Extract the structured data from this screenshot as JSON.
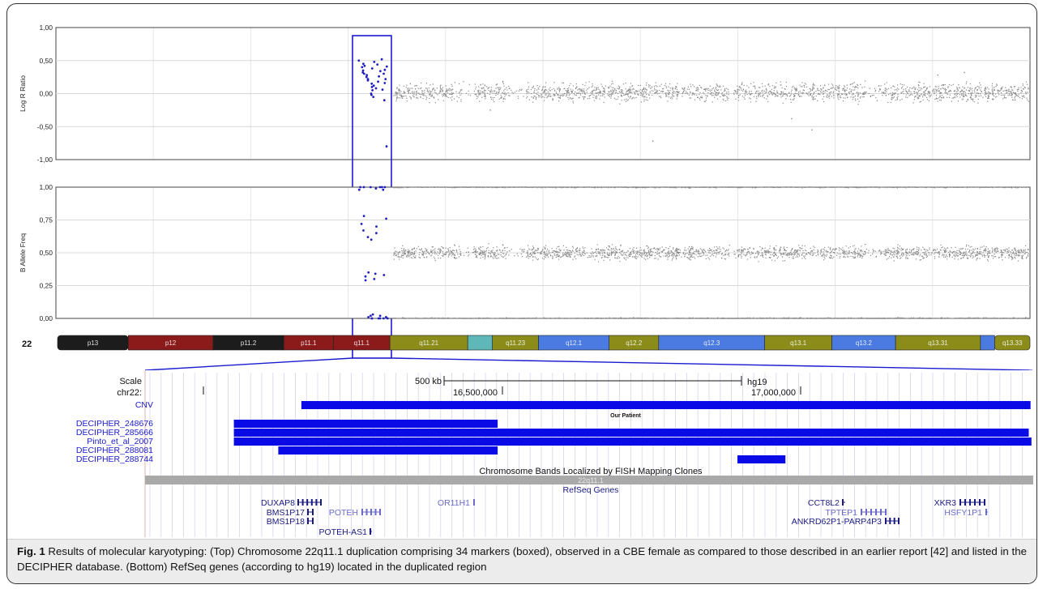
{
  "top_chart": {
    "chart_data": [
      {
        "type": "scatter",
        "ylabel": "Log R Ratio",
        "ylim": [
          -1.0,
          1.0
        ],
        "yticks": [
          "1,00",
          "0,50",
          "0,00",
          "-0,50",
          "-1,00"
        ],
        "grid": true,
        "series": [
          {
            "color": "#888888",
            "bands": [
              {
                "center": 0.02,
                "spread": 0.12
              }
            ],
            "outliers": [
              -0.38,
              -0.55,
              -0.72,
              0.28,
              0.32,
              -0.25
            ]
          },
          {
            "color": "#1f1fbf",
            "values": [
              0.5,
              0.45,
              0.42,
              0.4,
              0.35,
              0.32,
              0.3,
              0.28,
              0.25,
              0.22,
              0.2,
              0.15,
              0.1,
              0.05,
              0.0,
              -0.02,
              -0.05,
              0.38,
              0.48,
              0.12,
              0.26,
              0.18,
              0.08,
              0.44,
              0.34,
              0.52,
              0.3,
              0.16,
              0.06,
              -0.1,
              0.22,
              0.41,
              0.36,
              -0.8
            ]
          }
        ]
      },
      {
        "type": "scatter",
        "ylabel": "B Allele Freq",
        "ylim": [
          0.0,
          1.0
        ],
        "yticks": [
          "1,00",
          "0,75",
          "0,50",
          "0,25",
          "0,00"
        ],
        "grid": true,
        "series": [
          {
            "color": "#888888",
            "bands": [
              {
                "center": 1.0,
                "spread": 0.005
              },
              {
                "center": 0.5,
                "spread": 0.045
              },
              {
                "center": 0.0,
                "spread": 0.005
              }
            ]
          },
          {
            "color": "#1f1fbf",
            "values": [
              1.0,
              0.98,
              1.0,
              0.78,
              0.72,
              0.67,
              0.62,
              0.35,
              0.32,
              0.29,
              0.02,
              0.0,
              0.01,
              1.0,
              0.0,
              0.6,
              0.3,
              0.99,
              0.03,
              0.7,
              0.65,
              0.34,
              0.0,
              1.0,
              0.02,
              0.0,
              1.0,
              0.98,
              0.0,
              0.33,
              0.76,
              0.0,
              1.0,
              0.01
            ]
          }
        ]
      }
    ]
  },
  "ideogram": {
    "chromosome": "22",
    "bands": [
      {
        "label": "p13",
        "color": "#1c1c1c",
        "w": 1.0
      },
      {
        "label": "p12",
        "color": "#8b1a1a",
        "w": 1.2
      },
      {
        "label": "p11.2",
        "color": "#1c1c1c",
        "w": 1.0
      },
      {
        "label": "p11.1",
        "color": "#8b1a1a",
        "w": 0.7
      },
      {
        "label": "q11.1",
        "color": "#8b1a1a",
        "w": 0.8
      },
      {
        "label": "q11.21",
        "color": "#8c8c1a",
        "w": 1.1
      },
      {
        "label": "",
        "color": "#5fb8b8",
        "w": 0.35
      },
      {
        "label": "q11.23",
        "color": "#8c8c1a",
        "w": 0.65
      },
      {
        "label": "q12.1",
        "color": "#4b7be0",
        "w": 1.0
      },
      {
        "label": "q12.2",
        "color": "#8c8c1a",
        "w": 0.7
      },
      {
        "label": "q12.3",
        "color": "#4b7be0",
        "w": 1.5
      },
      {
        "label": "q13.1",
        "color": "#8c8c1a",
        "w": 0.95
      },
      {
        "label": "q13.2",
        "color": "#4b7be0",
        "w": 0.9
      },
      {
        "label": "q13.31",
        "color": "#8c8c1a",
        "w": 1.2
      },
      {
        "label": "",
        "color": "#4b7be0",
        "w": 0.2
      },
      {
        "label": "q13.33",
        "color": "#8c8c1a",
        "w": 0.5
      }
    ]
  },
  "browser": {
    "scale_label": "Scale",
    "chr_label": "chr22:",
    "scale_bar": "500 kb",
    "assembly": "hg19",
    "positions": [
      "16,500,000",
      "17,000,000"
    ],
    "tracks": [
      {
        "name": "CNV",
        "start": 0.176,
        "end": 0.997
      },
      {
        "name": "DECIPHER_248676",
        "start": 0.1,
        "end": 0.397
      },
      {
        "name": "DECIPHER_285666",
        "start": 0.1,
        "end": 0.995
      },
      {
        "name": "Pinto_et_al_2007",
        "start": 0.1,
        "end": 0.998
      },
      {
        "name": "DECIPHER_288081",
        "start": 0.15,
        "end": 0.397
      },
      {
        "name": "DECIPHER_288744",
        "start": 0.667,
        "end": 0.721
      }
    ],
    "our_patient_label": "Our Patient",
    "fish_label": "Chromosome Bands Localized by FISH Mapping Clones",
    "fish_band": "22q11.1",
    "refseq_label": "RefSeq Genes",
    "genes": [
      {
        "name": "DUXAP8",
        "color": "#1a1a80"
      },
      {
        "name": "BMS1P17",
        "color": "#1a1a80"
      },
      {
        "name": "BMS1P18",
        "color": "#1a1a80"
      },
      {
        "name": "POTEH",
        "color": "#6a6ac8"
      },
      {
        "name": "POTEH-AS1",
        "color": "#1a1a80"
      },
      {
        "name": "OR11H1",
        "color": "#6a6ac8"
      },
      {
        "name": "CCT8L2",
        "color": "#1a1a80"
      },
      {
        "name": "TPTEP1",
        "color": "#6a6ac8"
      },
      {
        "name": "ANKRD62P1-PARP4P3",
        "color": "#1a1a80"
      },
      {
        "name": "XKR3",
        "color": "#1a1a80"
      },
      {
        "name": "HSFY1P1",
        "color": "#6a6ac8"
      }
    ]
  },
  "caption": {
    "fig_label": "Fig. 1",
    "text": " Results of molecular karyotyping: (Top) Chromosome 22q11.1 duplication comprising 34 markers (boxed), observed in a CBE female as compared to those described in an earlier report [42] and listed in the DECIPHER database. (Bottom) RefSeq genes (according to hg19) located in the duplicated region"
  },
  "colors": {
    "accent": "#1414c8",
    "grey_dot": "#888888",
    "box": "#1a1ad0"
  }
}
